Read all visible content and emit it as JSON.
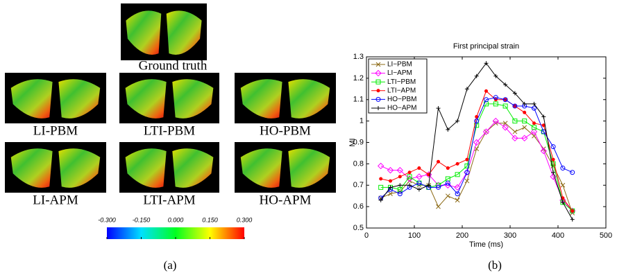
{
  "panel_a": {
    "labels": [
      "Ground truth",
      "LI-PBM",
      "LTI-PBM",
      "HO-PBM",
      "LI-APM",
      "LTI-APM",
      "HO-APM"
    ],
    "colorbar_ticks": [
      {
        "value": -0.3,
        "label": "-0.300"
      },
      {
        "value": -0.15,
        "label": "-0.150"
      },
      {
        "value": 0,
        "label": "0.000"
      },
      {
        "value": 0.15,
        "label": "0.150"
      },
      {
        "value": 0.3,
        "label": "0.300"
      }
    ]
  },
  "captions": [
    "(a)",
    "(b)"
  ],
  "chart_data": {
    "type": "line",
    "title": "First principal strain",
    "x_label": "Time (ms)",
    "y_label": "MI",
    "x": [
      30,
      50,
      70,
      90,
      110,
      130,
      150,
      170,
      190,
      210,
      230,
      250,
      270,
      290,
      310,
      330,
      350,
      370,
      390,
      410,
      430
    ],
    "series": [
      {
        "name": "LI−PBM",
        "color": "#8b6914",
        "marker": "x",
        "values": [
          0.64,
          0.66,
          0.67,
          0.72,
          0.7,
          0.7,
          0.6,
          0.65,
          0.63,
          0.72,
          0.87,
          0.95,
          0.99,
          0.99,
          0.95,
          0.97,
          0.93,
          0.87,
          0.79,
          0.7,
          0.57
        ]
      },
      {
        "name": "LI−APM",
        "color": "#ff00ff",
        "marker": "diamond",
        "values": [
          0.79,
          0.77,
          0.77,
          0.73,
          0.74,
          0.75,
          0.7,
          0.7,
          0.69,
          0.76,
          0.9,
          0.95,
          1.0,
          0.97,
          0.92,
          0.92,
          0.95,
          0.86,
          0.74,
          0.63,
          0.58
        ]
      },
      {
        "name": "LTI−PBM",
        "color": "#00ee00",
        "marker": "square",
        "values": [
          0.69,
          0.69,
          0.68,
          0.74,
          0.71,
          0.69,
          0.7,
          0.73,
          0.75,
          0.79,
          0.98,
          1.08,
          1.08,
          1.07,
          1.0,
          1.0,
          0.97,
          0.95,
          0.8,
          0.62,
          0.58
        ]
      },
      {
        "name": "LTI−APM",
        "color": "#ff0000",
        "marker": "dot",
        "values": [
          0.73,
          0.72,
          0.74,
          0.76,
          0.78,
          0.75,
          0.81,
          0.78,
          0.8,
          0.82,
          1.02,
          1.14,
          1.1,
          1.1,
          1.07,
          1.04,
          0.99,
          0.98,
          0.82,
          0.64,
          0.58
        ]
      },
      {
        "name": "HO−PBM",
        "color": "#0000ff",
        "marker": "circle",
        "values": [
          0.64,
          0.68,
          0.66,
          0.69,
          0.71,
          0.69,
          0.69,
          0.71,
          0.66,
          0.76,
          1.0,
          1.1,
          1.11,
          1.1,
          1.07,
          1.07,
          1.06,
          0.95,
          0.88,
          0.78,
          0.76
        ]
      },
      {
        "name": "HO−APM",
        "color": "#000000",
        "marker": "plus",
        "values": [
          0.63,
          0.69,
          0.7,
          0.7,
          0.68,
          0.7,
          1.06,
          0.96,
          1.0,
          1.15,
          1.21,
          1.27,
          1.21,
          1.17,
          1.13,
          1.08,
          1.08,
          1.02,
          0.76,
          0.62,
          0.54
        ]
      }
    ],
    "xlim": [
      0,
      500
    ],
    "xticks": [
      0,
      100,
      200,
      300,
      400,
      500
    ],
    "ylim": [
      0.5,
      1.3
    ],
    "yticks": [
      0.5,
      0.6,
      0.7,
      0.8,
      0.9,
      1,
      1.1,
      1.2,
      1.3
    ],
    "grid": false,
    "legend": "upper-left"
  }
}
